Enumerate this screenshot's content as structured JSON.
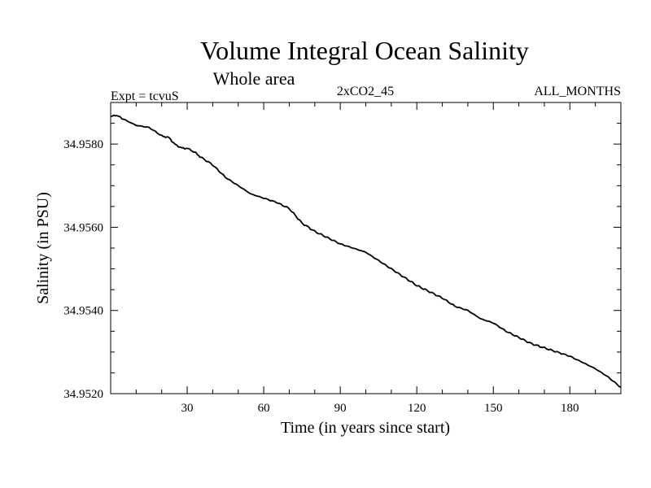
{
  "chart_data": {
    "type": "line",
    "title": "Volume Integral Ocean Salinity",
    "subtitle": "Whole area",
    "header_left": "Expt = tcvuS",
    "header_center": "2xCO2_45",
    "header_right": "ALL_MONTHS",
    "xlabel": "Time (in years since start)",
    "ylabel": "Salinity (in PSU)",
    "xlim": [
      0,
      200
    ],
    "ylim": [
      34.952,
      34.959
    ],
    "x_ticks": [
      30,
      60,
      90,
      120,
      150,
      180
    ],
    "x_tick_labels": [
      "30",
      "60",
      "90",
      "120",
      "150",
      "180"
    ],
    "y_ticks": [
      34.952,
      34.954,
      34.956,
      34.958
    ],
    "y_tick_labels": [
      "34.9520",
      "34.9540",
      "34.9560",
      "34.9580"
    ],
    "grid": false,
    "series": [
      {
        "color": "#000000",
        "x": [
          0,
          2,
          5,
          10,
          15,
          20,
          23,
          25,
          28,
          30,
          33,
          35,
          40,
          45,
          50,
          55,
          60,
          65,
          70,
          75,
          80,
          85,
          90,
          95,
          100,
          105,
          110,
          115,
          120,
          125,
          130,
          135,
          140,
          145,
          150,
          155,
          160,
          165,
          170,
          175,
          180,
          185,
          190,
          195,
          200
        ],
        "y": [
          34.95865,
          34.9587,
          34.9586,
          34.95845,
          34.9584,
          34.9582,
          34.95815,
          34.958,
          34.9579,
          34.9579,
          34.9578,
          34.9577,
          34.9575,
          34.9572,
          34.957,
          34.9568,
          34.9567,
          34.9566,
          34.95645,
          34.9561,
          34.9559,
          34.95575,
          34.9556,
          34.9555,
          34.9554,
          34.9552,
          34.955,
          34.9548,
          34.9546,
          34.95445,
          34.9543,
          34.9541,
          34.954,
          34.9538,
          34.9537,
          34.9535,
          34.95335,
          34.9532,
          34.9531,
          34.953,
          34.9529,
          34.95275,
          34.9526,
          34.9524,
          34.95215
        ]
      }
    ]
  }
}
